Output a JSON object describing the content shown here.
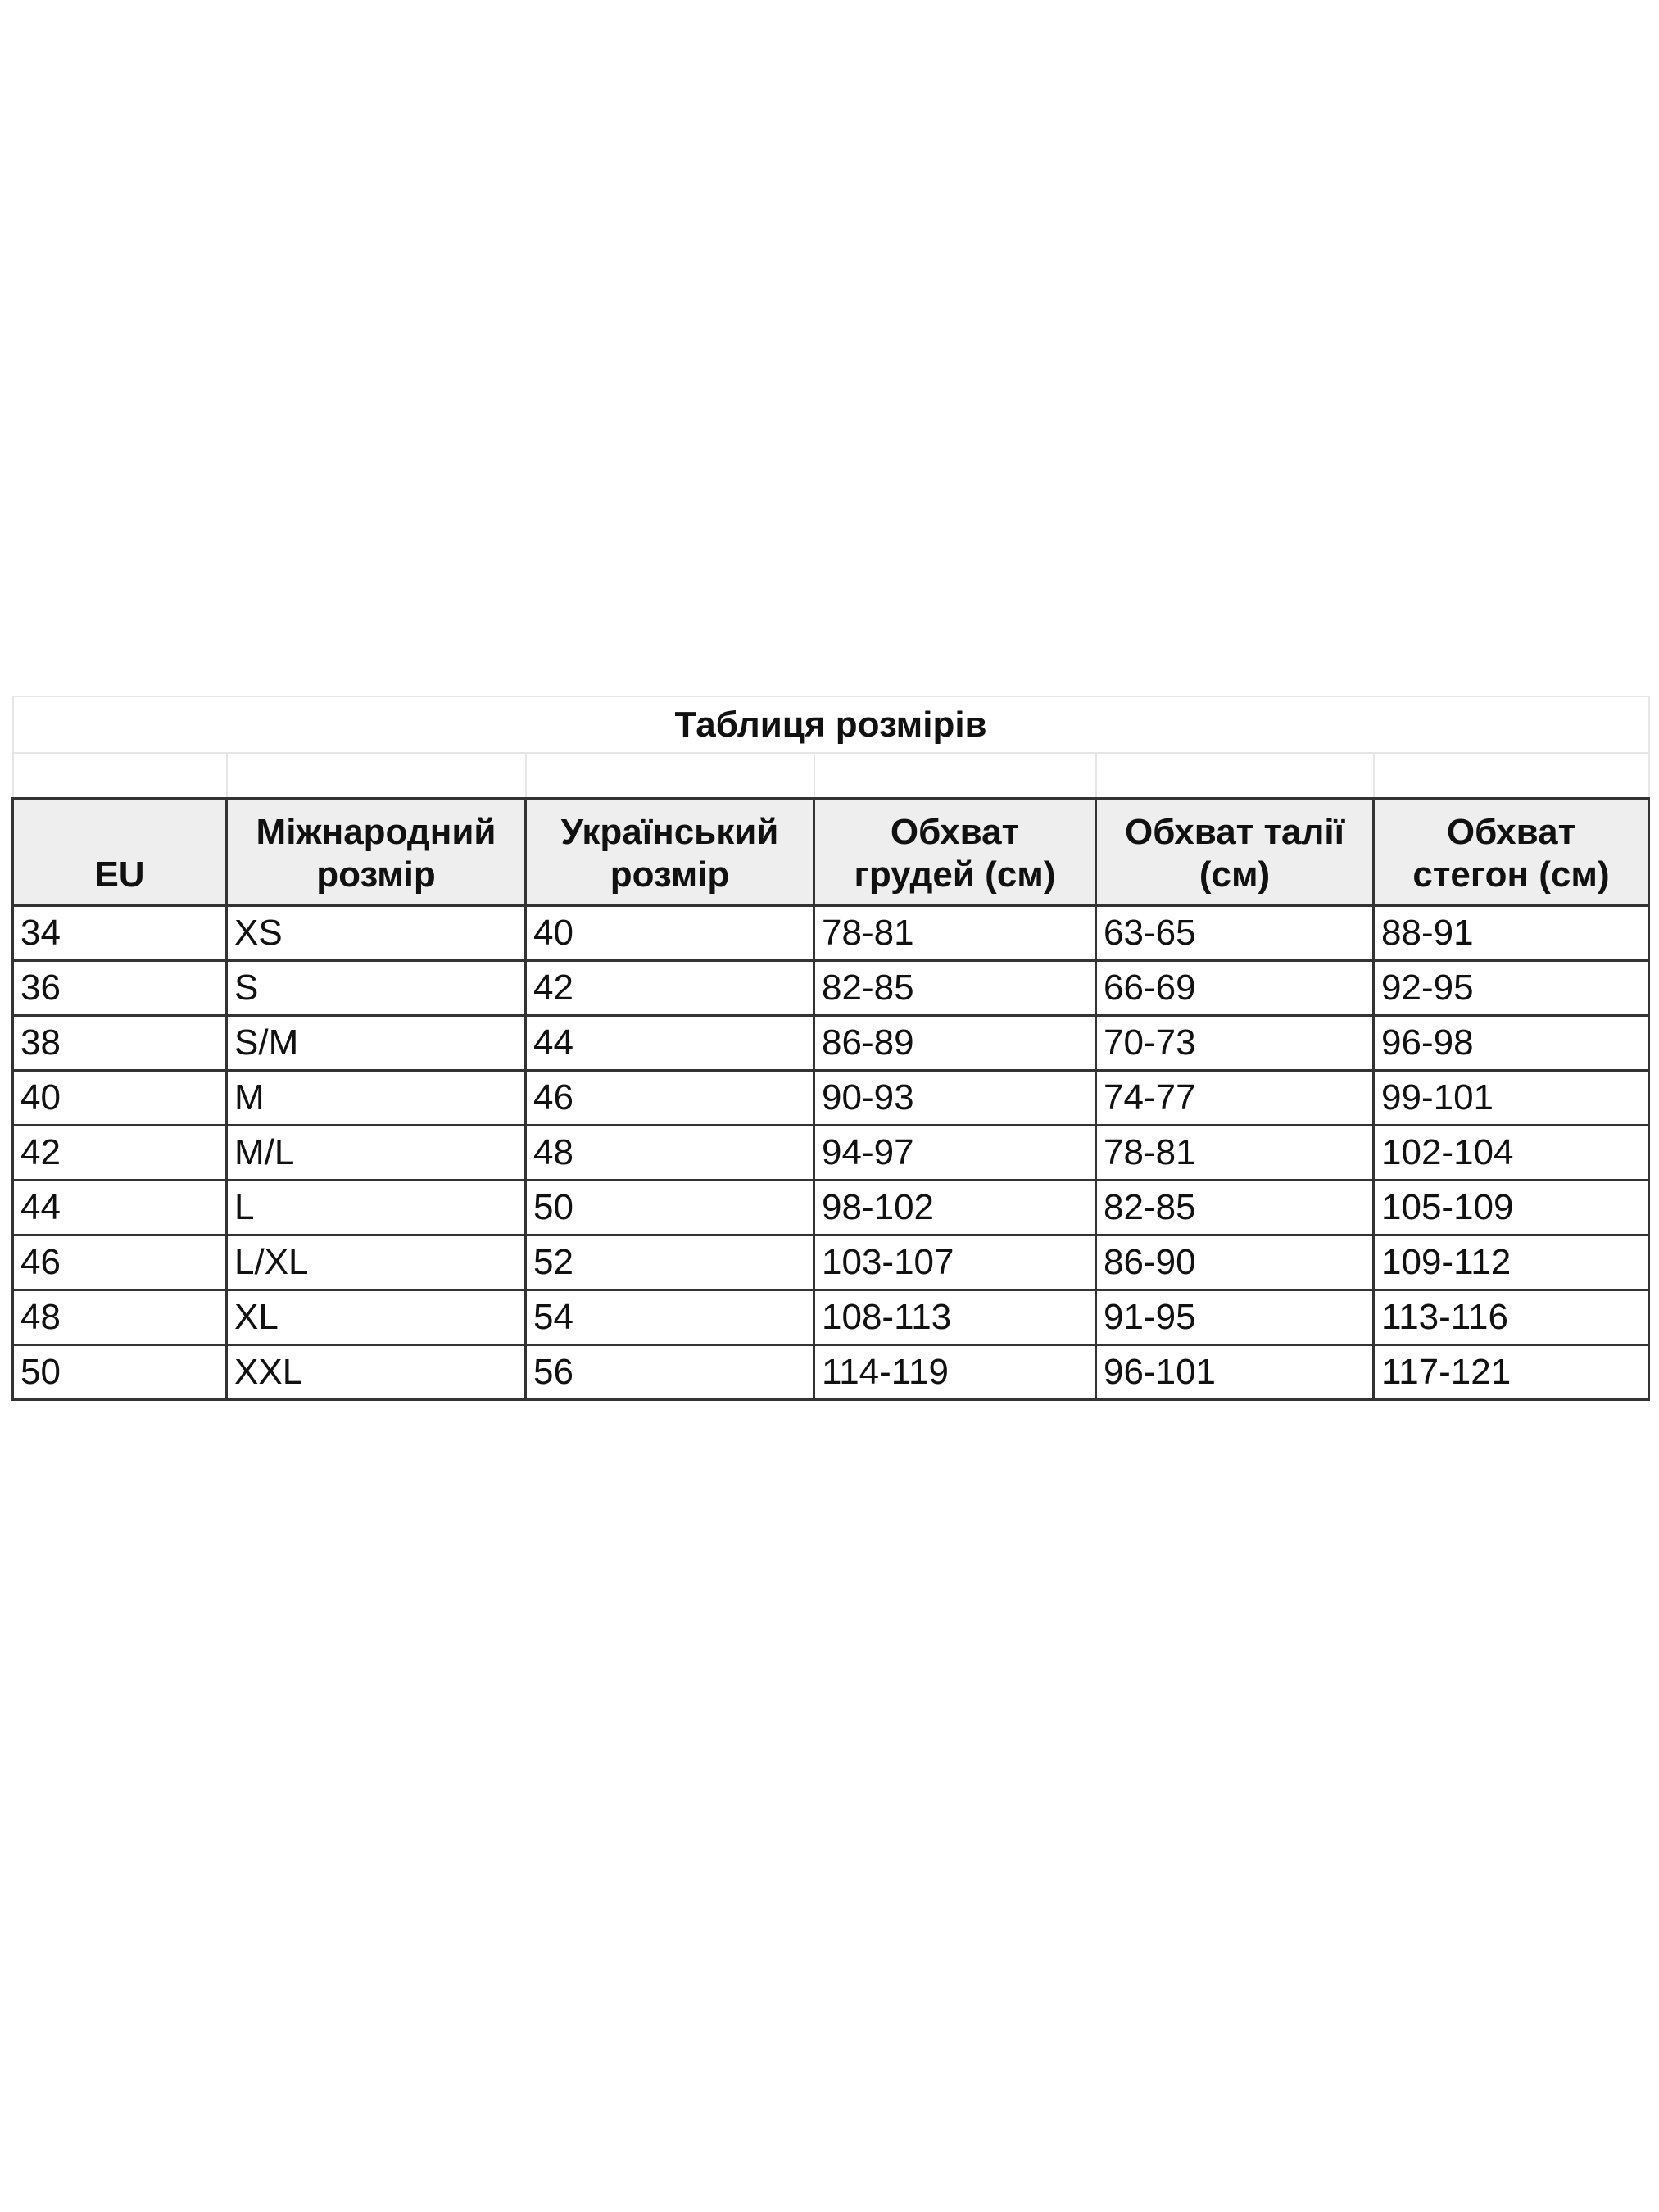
{
  "table": {
    "title": "Таблиця розмірів",
    "headers": [
      "EU",
      "Міжнародний\nрозмір",
      "Український\nрозмір",
      "Обхват\nгрудей (см)",
      "Обхват талії\n(см)",
      "Обхват\nстегон (см)"
    ],
    "rows": [
      [
        "34",
        "XS",
        "40",
        "78-81",
        "63-65",
        "88-91"
      ],
      [
        "36",
        "S",
        "42",
        "82-85",
        "66-69",
        "92-95"
      ],
      [
        "38",
        "S/M",
        "44",
        "86-89",
        "70-73",
        "96-98"
      ],
      [
        "40",
        "M",
        "46",
        "90-93",
        "74-77",
        "99-101"
      ],
      [
        "42",
        "M/L",
        "48",
        "94-97",
        "78-81",
        "102-104"
      ],
      [
        "44",
        "L",
        "50",
        "98-102",
        "82-85",
        "105-109"
      ],
      [
        "46",
        "L/XL",
        "52",
        "103-107",
        "86-90",
        "109-112"
      ],
      [
        "48",
        "XL",
        "54",
        "108-113",
        "91-95",
        "113-116"
      ],
      [
        "50",
        "XXL",
        "56",
        "114-119",
        "96-101",
        "117-121"
      ]
    ]
  }
}
